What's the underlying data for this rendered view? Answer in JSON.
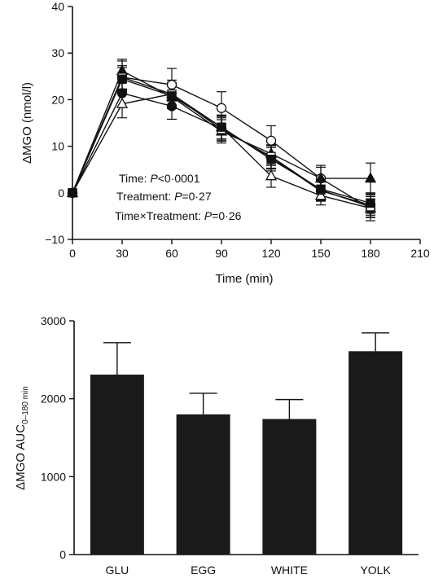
{
  "chart_data": [
    {
      "type": "line",
      "xlabel": "Time (min)",
      "ylabel_delta": "Δ",
      "ylabel_rest": "MGO (nmol/l)",
      "xlim": [
        0,
        210
      ],
      "ylim": [
        -10,
        40
      ],
      "xticks": [
        0,
        30,
        60,
        90,
        120,
        150,
        180,
        210
      ],
      "yticks": [
        -10,
        0,
        10,
        20,
        30,
        40
      ],
      "x": [
        0,
        30,
        60,
        90,
        120,
        150,
        180
      ],
      "series": [
        {
          "marker": "circle-open",
          "values": [
            0,
            24.8,
            23.2,
            18.2,
            11.2,
            3.1,
            -3.4
          ],
          "errors": [
            0,
            3.5,
            3.5,
            3.5,
            3.2,
            2.8,
            2.6
          ]
        },
        {
          "marker": "circle-filled",
          "values": [
            0,
            21.4,
            18.6,
            13.8,
            7.6,
            0.4,
            -2.6
          ],
          "errors": [
            0,
            3.0,
            2.8,
            2.6,
            2.5,
            2.2,
            2.2
          ]
        },
        {
          "marker": "triangle-open",
          "values": [
            0,
            19.1,
            21.2,
            14.1,
            3.6,
            -0.6,
            -3.3
          ],
          "errors": [
            0,
            3.0,
            3.0,
            2.6,
            2.4,
            2.0,
            2.0
          ]
        },
        {
          "marker": "triangle-filled",
          "values": [
            0,
            26.2,
            20.6,
            13.2,
            8.4,
            3.1,
            3.1
          ],
          "errors": [
            0,
            2.5,
            2.5,
            2.5,
            2.5,
            2.4,
            3.3
          ]
        },
        {
          "marker": "square-open",
          "values": [
            0,
            24.8,
            21.2,
            13.6,
            7.8,
            0.6,
            -3.0
          ],
          "errors": [
            0,
            2.5,
            2.5,
            2.5,
            2.5,
            2.2,
            2.2
          ]
        },
        {
          "marker": "square-filled",
          "values": [
            0,
            24.4,
            20.8,
            14.1,
            7.2,
            0.8,
            -2.2
          ],
          "errors": [
            0,
            2.5,
            2.5,
            2.5,
            2.5,
            2.2,
            2.2
          ]
        }
      ],
      "annotations": [
        {
          "pre": "Time: ",
          "italic": "P",
          "post": "<0·0001"
        },
        {
          "pre": "Treatment: ",
          "italic": "P",
          "post": "=0·27"
        },
        {
          "pre": "Time×Treatment: ",
          "italic": "P",
          "post": "=0·26"
        }
      ]
    },
    {
      "type": "bar",
      "ylabel_delta": "Δ",
      "ylabel_main": "MGO AUC",
      "ylabel_sub": "0–180 min",
      "ylim": [
        0,
        3000
      ],
      "yticks": [
        0,
        1000,
        2000,
        3000
      ],
      "categories": [
        "GLU",
        "EGG",
        "WHITE",
        "YOLK"
      ],
      "values": [
        2310,
        1800,
        1740,
        2610
      ],
      "errors": [
        410,
        270,
        250,
        235
      ],
      "bar_color": "#1a1a1a"
    }
  ]
}
